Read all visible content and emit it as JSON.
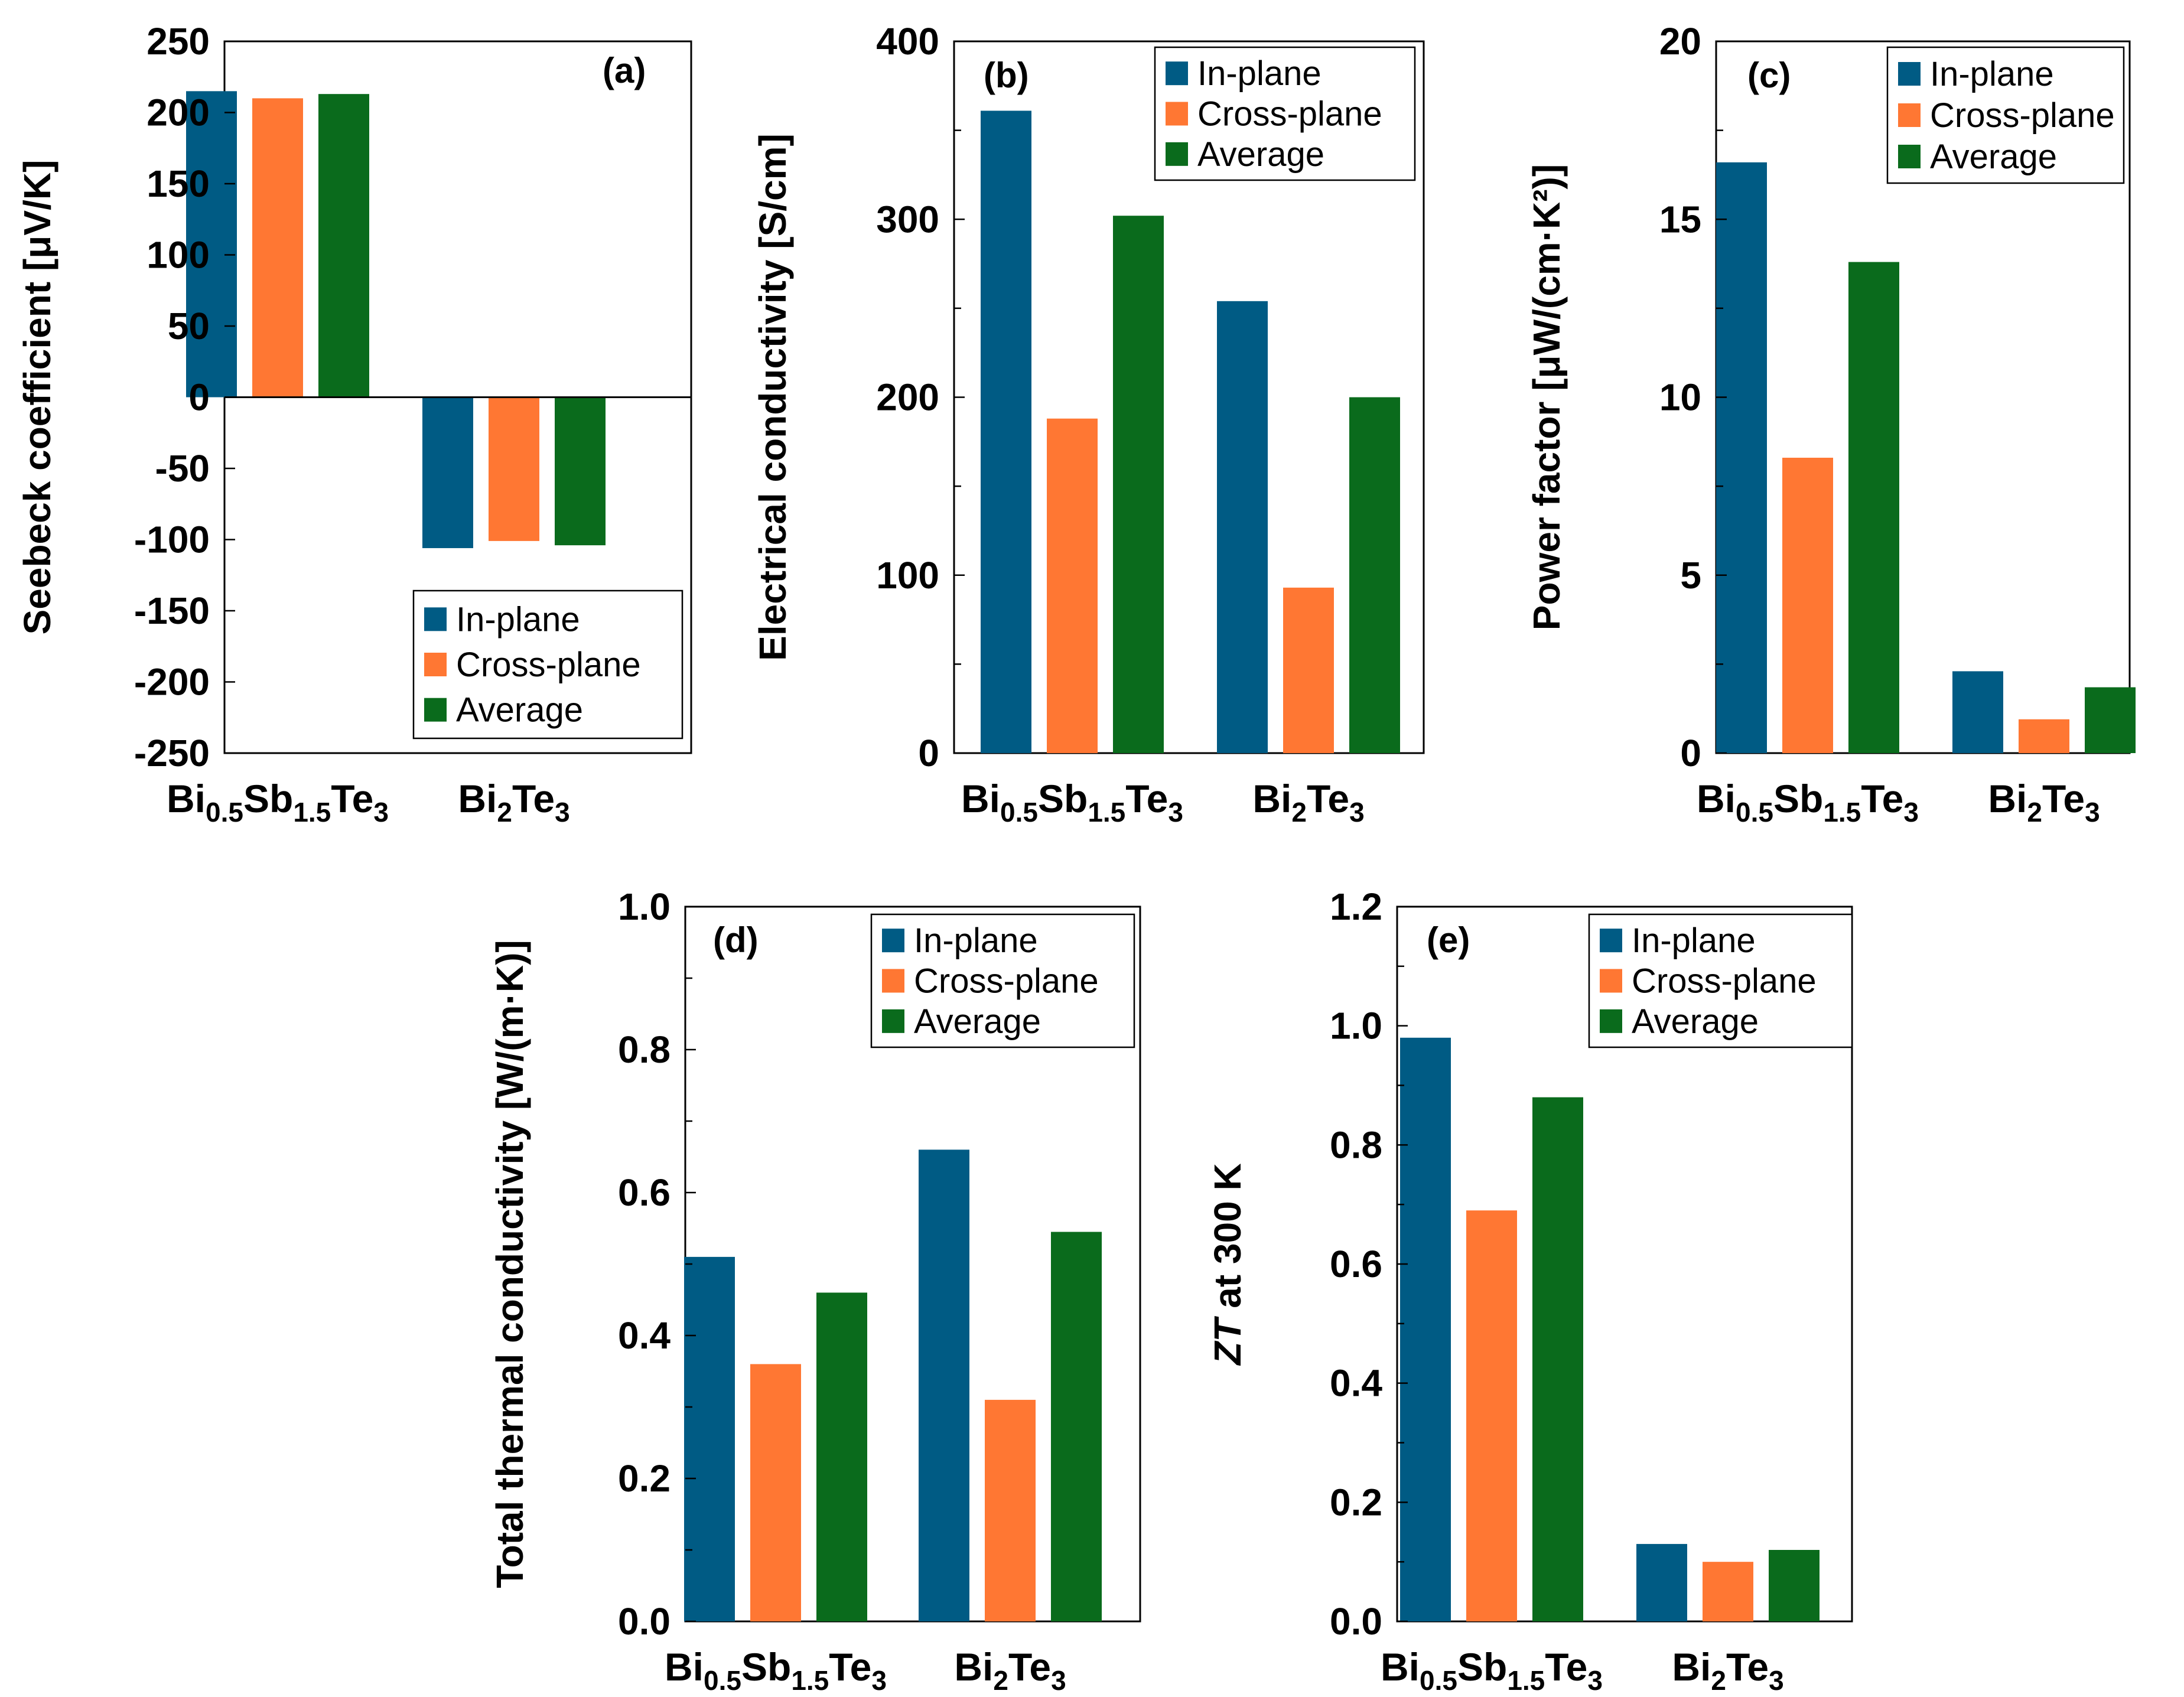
{
  "colors": {
    "in_plane": "#005b84",
    "cross_plane": "#ff7733",
    "average": "#0a6b1c"
  },
  "chart_data": [
    {
      "id": "a",
      "type": "bar",
      "panel_label": "(a)",
      "ylabel": "Seebeck coefficient [μV/K]",
      "ylim": [
        -250,
        250
      ],
      "major_ticks": [
        -250,
        -200,
        -150,
        -100,
        -50,
        0,
        50,
        100,
        150,
        200,
        250
      ],
      "minor_ticks": [],
      "tick_labels": [
        "-250",
        "-200",
        "-150",
        "-100",
        "-50",
        "0",
        "50",
        "100",
        "150",
        "200",
        "250"
      ],
      "categories": [
        {
          "base": "Bi",
          "parts": [
            [
              "Bi",
              ""
            ],
            [
              "0.5",
              "sub"
            ],
            [
              "Sb",
              ""
            ],
            [
              "1.5",
              "sub"
            ],
            [
              "Te",
              ""
            ],
            [
              "3",
              "sub"
            ]
          ]
        },
        {
          "base": "Bi",
          "parts": [
            [
              "Bi",
              ""
            ],
            [
              "2",
              "sub"
            ],
            [
              "Te",
              ""
            ],
            [
              "3",
              "sub"
            ]
          ]
        }
      ],
      "legend_placement": "bottom-right",
      "series": [
        {
          "name": "In-plane",
          "values": [
            215,
            -106
          ]
        },
        {
          "name": "Cross-plane",
          "values": [
            210,
            -101
          ]
        },
        {
          "name": "Average",
          "values": [
            213,
            -104
          ]
        }
      ]
    },
    {
      "id": "b",
      "type": "bar",
      "panel_label": "(b)",
      "ylabel": "Electrical conductivity [S/cm]",
      "ylim": [
        0,
        400
      ],
      "major_ticks": [
        0,
        100,
        200,
        300,
        400
      ],
      "minor_ticks": [
        50,
        150,
        250,
        350
      ],
      "tick_labels": [
        "0",
        "100",
        "200",
        "300",
        "400"
      ],
      "categories": [
        {
          "base": "Bi",
          "parts": [
            [
              "Bi",
              ""
            ],
            [
              "0.5",
              "sub"
            ],
            [
              "Sb",
              ""
            ],
            [
              "1.5",
              "sub"
            ],
            [
              "Te",
              ""
            ],
            [
              "3",
              "sub"
            ]
          ]
        },
        {
          "base": "Bi",
          "parts": [
            [
              "Bi",
              ""
            ],
            [
              "2",
              "sub"
            ],
            [
              "Te",
              ""
            ],
            [
              "3",
              "sub"
            ]
          ]
        }
      ],
      "legend_placement": "top-right",
      "series": [
        {
          "name": "In-plane",
          "values": [
            361,
            254
          ]
        },
        {
          "name": "Cross-plane",
          "values": [
            188,
            93
          ]
        },
        {
          "name": "Average",
          "values": [
            302,
            200
          ]
        }
      ]
    },
    {
      "id": "c",
      "type": "bar",
      "panel_label": "(c)",
      "ylabel": "Power factor [μW/(cm·K²)]",
      "ylim": [
        0,
        20
      ],
      "major_ticks": [
        0,
        5,
        10,
        15,
        20
      ],
      "minor_ticks": [
        2.5,
        7.5,
        12.5,
        17.5
      ],
      "tick_labels": [
        "0",
        "5",
        "10",
        "15",
        "20"
      ],
      "categories": [
        {
          "base": "Bi",
          "parts": [
            [
              "Bi",
              ""
            ],
            [
              "0.5",
              "sub"
            ],
            [
              "Sb",
              ""
            ],
            [
              "1.5",
              "sub"
            ],
            [
              "Te",
              ""
            ],
            [
              "3",
              "sub"
            ]
          ]
        },
        {
          "base": "Bi",
          "parts": [
            [
              "Bi",
              ""
            ],
            [
              "2",
              "sub"
            ],
            [
              "Te",
              ""
            ],
            [
              "3",
              "sub"
            ]
          ]
        }
      ],
      "legend_placement": "top-right",
      "series": [
        {
          "name": "In-plane",
          "values": [
            16.6,
            2.3
          ]
        },
        {
          "name": "Cross-plane",
          "values": [
            8.3,
            0.95
          ]
        },
        {
          "name": "Average",
          "values": [
            13.8,
            1.85
          ]
        }
      ]
    },
    {
      "id": "d",
      "type": "bar",
      "panel_label": "(d)",
      "ylabel": "Total thermal conductivity [W/(m·K)]",
      "ylim": [
        0,
        1.0
      ],
      "major_ticks": [
        0,
        0.2,
        0.4,
        0.6,
        0.8,
        1.0
      ],
      "minor_ticks": [
        0.1,
        0.3,
        0.5,
        0.7,
        0.9
      ],
      "tick_labels": [
        "0.0",
        "0.2",
        "0.4",
        "0.6",
        "0.8",
        "1.0"
      ],
      "categories": [
        {
          "base": "Bi",
          "parts": [
            [
              "Bi",
              ""
            ],
            [
              "0.5",
              "sub"
            ],
            [
              "Sb",
              ""
            ],
            [
              "1.5",
              "sub"
            ],
            [
              "Te",
              ""
            ],
            [
              "3",
              "sub"
            ]
          ]
        },
        {
          "base": "Bi",
          "parts": [
            [
              "Bi",
              ""
            ],
            [
              "2",
              "sub"
            ],
            [
              "Te",
              ""
            ],
            [
              "3",
              "sub"
            ]
          ]
        }
      ],
      "legend_placement": "top-right",
      "series": [
        {
          "name": "In-plane",
          "values": [
            0.51,
            0.66
          ]
        },
        {
          "name": "Cross-plane",
          "values": [
            0.36,
            0.31
          ]
        },
        {
          "name": "Average",
          "values": [
            0.46,
            0.545
          ]
        }
      ]
    },
    {
      "id": "e",
      "type": "bar",
      "panel_label": "(e)",
      "ylabel": "ZT at 300 K",
      "ylabel_italic_part": "ZT",
      "ylabel_rest": " at 300 K",
      "ylim": [
        0,
        1.2
      ],
      "major_ticks": [
        0,
        0.2,
        0.4,
        0.6,
        0.8,
        1.0,
        1.2
      ],
      "minor_ticks": [
        0.1,
        0.3,
        0.5,
        0.7,
        0.9,
        1.1
      ],
      "tick_labels": [
        "0.0",
        "0.2",
        "0.4",
        "0.6",
        "0.8",
        "1.0",
        "1.2"
      ],
      "categories": [
        {
          "base": "Bi",
          "parts": [
            [
              "Bi",
              ""
            ],
            [
              "0.5",
              "sub"
            ],
            [
              "Sb",
              ""
            ],
            [
              "1.5",
              "sub"
            ],
            [
              "Te",
              ""
            ],
            [
              "3",
              "sub"
            ]
          ]
        },
        {
          "base": "Bi",
          "parts": [
            [
              "Bi",
              ""
            ],
            [
              "2",
              "sub"
            ],
            [
              "Te",
              ""
            ],
            [
              "3",
              "sub"
            ]
          ]
        }
      ],
      "legend_placement": "top-right",
      "series": [
        {
          "name": "In-plane",
          "values": [
            0.98,
            0.13
          ]
        },
        {
          "name": "Cross-plane",
          "values": [
            0.69,
            0.1
          ]
        },
        {
          "name": "Average",
          "values": [
            0.88,
            0.12
          ]
        }
      ]
    }
  ]
}
